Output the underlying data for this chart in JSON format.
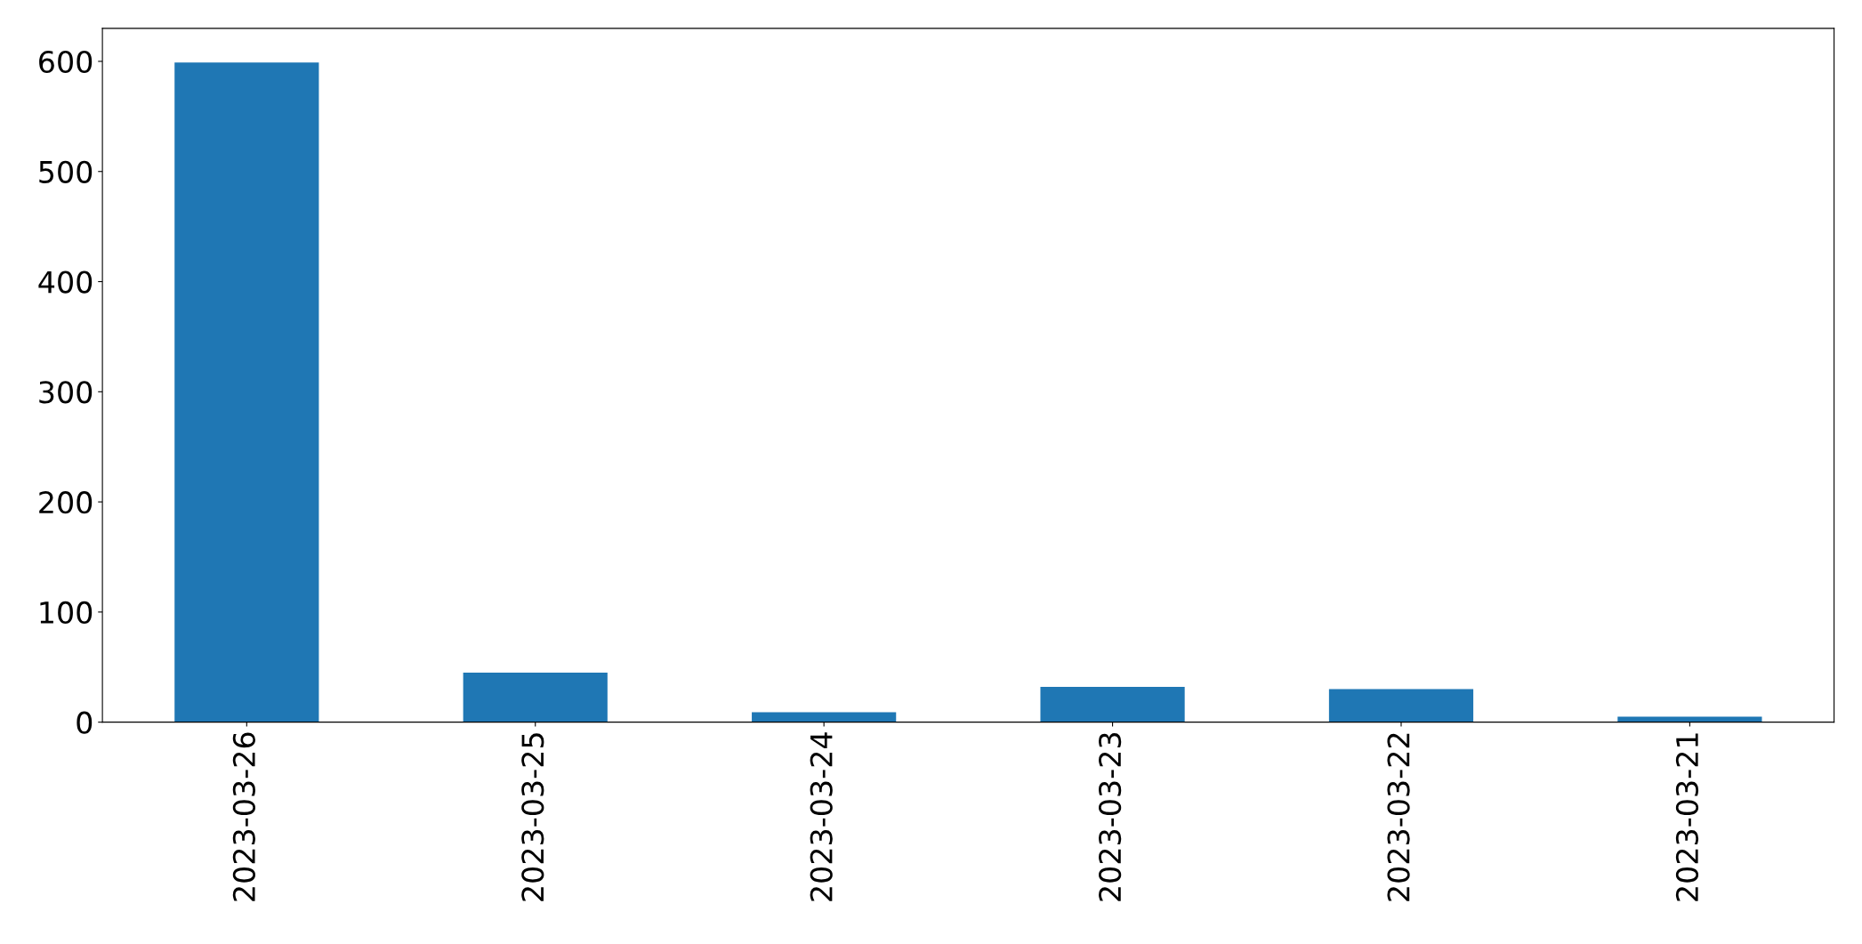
{
  "chart_data": {
    "type": "bar",
    "categories": [
      "2023-03-26",
      "2023-03-25",
      "2023-03-24",
      "2023-03-23",
      "2023-03-22",
      "2023-03-21"
    ],
    "values": [
      599,
      45,
      9,
      32,
      30,
      5
    ],
    "color": "#1f77b4",
    "ylim": [
      0,
      630
    ],
    "yticks": [
      0,
      100,
      200,
      300,
      400,
      500,
      600
    ],
    "grid": false
  }
}
